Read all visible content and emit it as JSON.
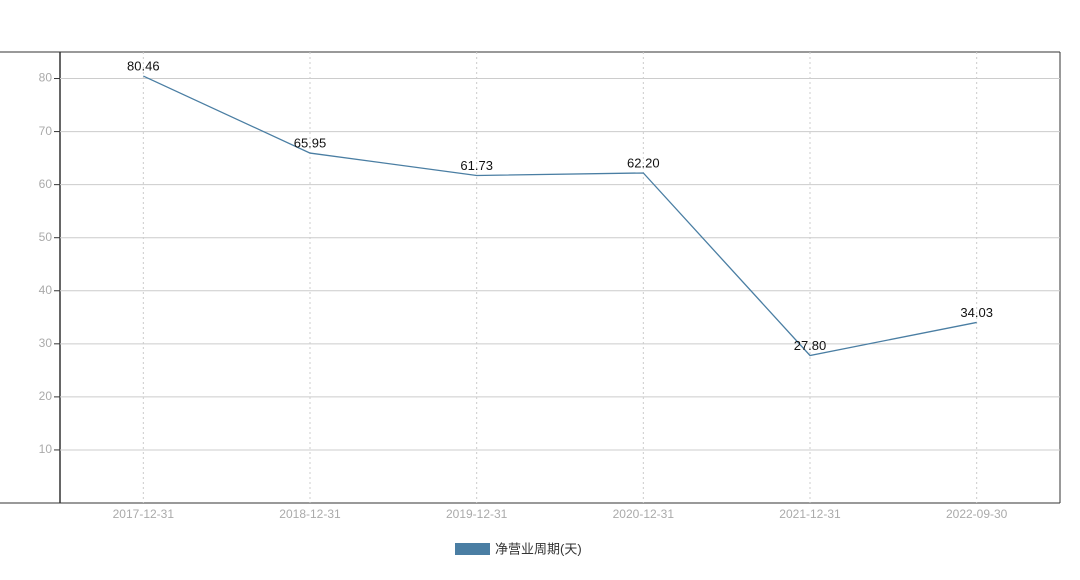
{
  "chart_data": {
    "type": "line",
    "categories": [
      "2017-12-31",
      "2018-12-31",
      "2019-12-31",
      "2020-12-31",
      "2021-12-31",
      "2022-09-30"
    ],
    "series": [
      {
        "name": "净营业周期(天)",
        "color": "#4a7ea3",
        "values": [
          80.46,
          65.95,
          61.73,
          62.2,
          27.8,
          34.03
        ],
        "value_labels": [
          "80.46",
          "65.95",
          "61.73",
          "62.20",
          "27.80",
          "34.03"
        ]
      }
    ],
    "ylim": [
      0,
      85
    ],
    "yticks": [
      10,
      20,
      30,
      40,
      50,
      60,
      70,
      80
    ],
    "grid": true,
    "legend": "bottom"
  }
}
